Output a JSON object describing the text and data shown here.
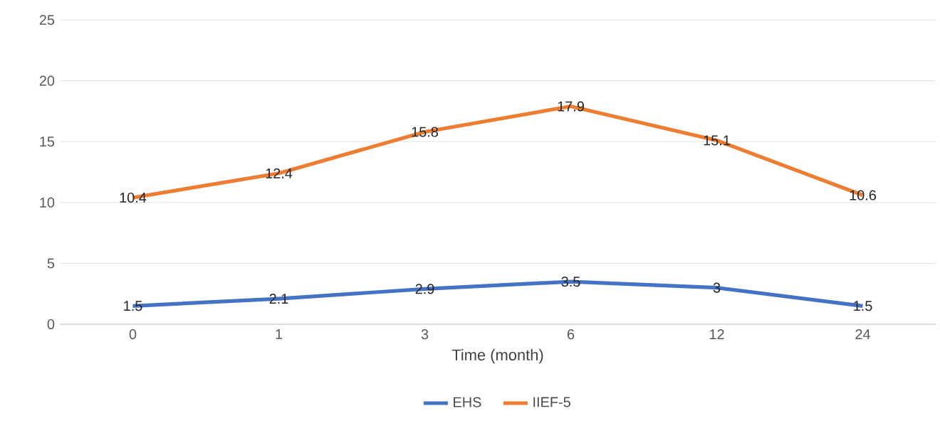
{
  "chart_data": {
    "type": "line",
    "xlabel": "Time (month)",
    "categories": [
      "0",
      "1",
      "3",
      "6",
      "12",
      "24"
    ],
    "series": [
      {
        "name": "EHS",
        "color": "#4472c4",
        "values": [
          1.5,
          2.1,
          2.9,
          3.5,
          3,
          1.5
        ]
      },
      {
        "name": "IIEF-5",
        "color": "#ed7d31",
        "values": [
          10.4,
          12.4,
          15.8,
          17.9,
          15.1,
          10.6
        ]
      }
    ],
    "ylim": [
      0,
      25
    ],
    "yticks": [
      0,
      5,
      10,
      15,
      20,
      25
    ],
    "grid": "y",
    "legend": "bottom",
    "data_labels": true,
    "marker": "none",
    "line_style": "solid"
  }
}
